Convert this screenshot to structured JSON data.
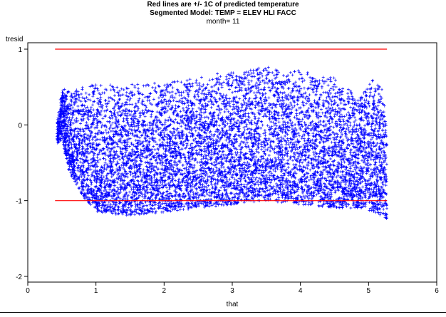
{
  "titles": {
    "line1": "Red lines are +/- 1C of predicted temperature",
    "line2": "Segmented Model: TEMP = ELEV HLI FACC",
    "line3": "month= 11"
  },
  "chart_data": {
    "type": "scatter",
    "title": "Red lines are +/- 1C of predicted temperature",
    "xlabel": "that",
    "ylabel": "tresid",
    "xlim": [
      0,
      6
    ],
    "ylim": [
      -2,
      1
    ],
    "x_ticks": [
      "0",
      "1",
      "2",
      "3",
      "4",
      "5",
      "6"
    ],
    "y_ticks": [
      "1",
      "0",
      "-1",
      "-2"
    ],
    "marker": "+",
    "marker_color": "#0000ff",
    "reference_lines": [
      {
        "y": 1,
        "x_start": 0.4,
        "x_end": 5.27,
        "color": "#ff0000"
      },
      {
        "y": -1,
        "x_start": 0.4,
        "x_end": 5.27,
        "color": "#ff0000"
      }
    ],
    "point_cloud_envelope": [
      {
        "x": 0.43,
        "y_low": -0.25,
        "y_high": 0.05
      },
      {
        "x": 0.5,
        "y_low": -0.2,
        "y_high": 0.5
      },
      {
        "x": 0.6,
        "y_low": -0.6,
        "y_high": 0.45
      },
      {
        "x": 0.8,
        "y_low": -0.95,
        "y_high": 0.5
      },
      {
        "x": 1.0,
        "y_low": -1.15,
        "y_high": 0.55
      },
      {
        "x": 1.5,
        "y_low": -1.2,
        "y_high": 0.55
      },
      {
        "x": 2.0,
        "y_low": -1.15,
        "y_high": 0.55
      },
      {
        "x": 2.5,
        "y_low": -1.1,
        "y_high": 0.65
      },
      {
        "x": 3.0,
        "y_low": -1.05,
        "y_high": 0.72
      },
      {
        "x": 3.5,
        "y_low": -1.0,
        "y_high": 0.77
      },
      {
        "x": 4.0,
        "y_low": -1.05,
        "y_high": 0.72
      },
      {
        "x": 4.5,
        "y_low": -1.1,
        "y_high": 0.62
      },
      {
        "x": 4.9,
        "y_low": -1.1,
        "y_high": 0.4
      },
      {
        "x": 5.05,
        "y_low": -1.15,
        "y_high": 0.62
      },
      {
        "x": 5.2,
        "y_low": -1.2,
        "y_high": 0.5
      },
      {
        "x": 5.27,
        "y_low": -1.25,
        "y_high": 0.05
      }
    ],
    "colors": {
      "points": "#0000ff",
      "ref_lines": "#ff0000",
      "axes": "#000000"
    }
  }
}
